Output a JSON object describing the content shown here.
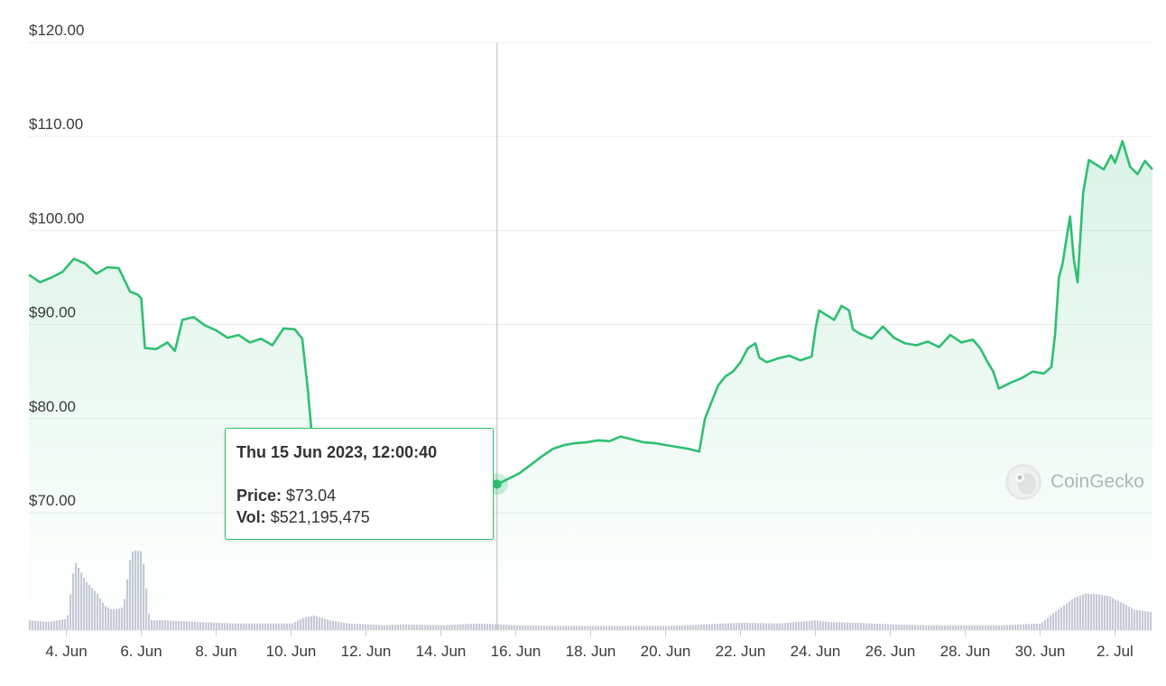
{
  "chart_data": {
    "type": "line",
    "title": "",
    "xlabel": "",
    "ylabel": "",
    "ylim": [
      70,
      120
    ],
    "y_ticks": [
      70,
      80,
      90,
      100,
      110,
      120
    ],
    "y_tick_labels": [
      "$70.00",
      "$80.00",
      "$90.00",
      "$100.00",
      "$110.00",
      "$120.00"
    ],
    "x_tick_labels": [
      "4. Jun",
      "6. Jun",
      "8. Jun",
      "10. Jun",
      "12. Jun",
      "14. Jun",
      "16. Jun",
      "18. Jun",
      "20. Jun",
      "22. Jun",
      "24. Jun",
      "26. Jun",
      "28. Jun",
      "30. Jun",
      "2. Jul"
    ],
    "x_tick_days": [
      4,
      6,
      8,
      10,
      12,
      14,
      16,
      18,
      20,
      22,
      24,
      26,
      28,
      30,
      32
    ],
    "x_range_days": [
      3,
      33
    ],
    "grid": true,
    "line_color": "#2fbf71",
    "volume_color": "#c7cbd6",
    "series": [
      {
        "x": [
          3.0,
          3.3,
          3.6,
          3.9,
          4.2,
          4.5,
          4.8,
          5.1,
          5.4,
          5.7,
          5.9,
          6.0,
          6.1,
          6.4,
          6.7,
          6.9,
          7.1,
          7.4,
          7.7,
          8.0,
          8.3,
          8.6,
          8.9,
          9.2,
          9.5,
          9.8,
          10.1,
          10.3,
          10.45,
          10.55,
          10.8,
          11.2,
          11.6,
          12.0,
          12.4,
          12.8,
          13.2,
          13.6,
          14.0,
          14.4,
          14.8,
          15.1,
          15.25,
          15.35,
          15.5,
          15.8,
          16.1,
          16.4,
          16.7,
          17.0,
          17.3,
          17.6,
          17.9,
          18.2,
          18.5,
          18.8,
          19.1,
          19.4,
          19.7,
          20.0,
          20.3,
          20.6,
          20.9,
          21.05,
          21.2,
          21.4,
          21.6,
          21.8,
          22.0,
          22.2,
          22.4,
          22.5,
          22.7,
          23.0,
          23.3,
          23.6,
          23.9,
          24.0,
          24.1,
          24.3,
          24.5,
          24.7,
          24.9,
          25.0,
          25.2,
          25.5,
          25.8,
          26.1,
          26.4,
          26.7,
          27.0,
          27.3,
          27.6,
          27.9,
          28.2,
          28.4,
          28.6,
          28.75,
          28.9,
          29.2,
          29.5,
          29.8,
          30.1,
          30.3,
          30.4,
          30.5,
          30.6,
          30.7,
          30.8,
          30.9,
          31.0,
          31.1,
          31.15,
          31.3,
          31.5,
          31.7,
          31.9,
          32.0,
          32.2,
          32.4,
          32.6,
          32.8,
          33.0
        ],
        "y": [
          95.3,
          94.5,
          95.0,
          95.6,
          97.0,
          96.5,
          95.4,
          96.1,
          96.0,
          93.5,
          93.2,
          92.8,
          87.5,
          87.4,
          88.1,
          87.2,
          90.5,
          90.8,
          89.9,
          89.4,
          88.6,
          88.9,
          88.1,
          88.5,
          87.8,
          89.6,
          89.5,
          88.5,
          83.0,
          78.5,
          77.6,
          78.2,
          77.8,
          78.3,
          77.9,
          78.4,
          78.0,
          78.8,
          78.6,
          78.1,
          78.3,
          77.9,
          75.0,
          73.5,
          73.0,
          73.6,
          74.2,
          75.1,
          76.0,
          76.8,
          77.2,
          77.4,
          77.5,
          77.7,
          77.6,
          78.1,
          77.8,
          77.5,
          77.4,
          77.2,
          77.0,
          76.8,
          76.5,
          80.0,
          81.5,
          83.5,
          84.5,
          85.0,
          86.0,
          87.5,
          88.0,
          86.5,
          86.0,
          86.4,
          86.7,
          86.2,
          86.6,
          89.5,
          91.5,
          91.0,
          90.5,
          92.0,
          91.5,
          89.5,
          89.0,
          88.5,
          89.8,
          88.6,
          88.0,
          87.8,
          88.2,
          87.6,
          88.9,
          88.1,
          88.4,
          87.5,
          86.0,
          85.0,
          83.2,
          83.8,
          84.3,
          85.0,
          84.8,
          85.5,
          89.0,
          95.0,
          96.5,
          99.0,
          101.5,
          97.0,
          94.5,
          101.0,
          104.0,
          107.5,
          107.0,
          106.5,
          108.0,
          107.2,
          109.5,
          106.8,
          106.0,
          107.4,
          106.5
        ]
      }
    ],
    "volume_data": {
      "x": [
        3.0,
        3.5,
        4.0,
        4.2,
        4.5,
        4.8,
        5.0,
        5.2,
        5.5,
        5.7,
        5.8,
        6.0,
        6.2,
        6.6,
        7.0,
        7.5,
        8.0,
        8.5,
        9.0,
        9.5,
        10.0,
        10.3,
        10.6,
        11.0,
        11.5,
        12.0,
        12.5,
        13.0,
        14.0,
        15.0,
        16.0,
        17.0,
        18.0,
        19.0,
        20.0,
        20.5,
        21.0,
        22.0,
        23.0,
        24.0,
        24.3,
        25.0,
        26.0,
        27.0,
        28.0,
        29.0,
        30.0,
        30.3,
        30.6,
        30.9,
        31.2,
        31.5,
        31.8,
        32.1,
        32.5,
        33.0
      ],
      "y": [
        0.12,
        0.1,
        0.14,
        0.85,
        0.6,
        0.45,
        0.3,
        0.25,
        0.28,
        0.95,
        0.98,
        0.97,
        0.12,
        0.12,
        0.11,
        0.1,
        0.09,
        0.08,
        0.08,
        0.08,
        0.08,
        0.15,
        0.18,
        0.12,
        0.08,
        0.07,
        0.06,
        0.07,
        0.06,
        0.08,
        0.06,
        0.05,
        0.05,
        0.05,
        0.05,
        0.06,
        0.07,
        0.09,
        0.08,
        0.12,
        0.1,
        0.09,
        0.07,
        0.06,
        0.06,
        0.06,
        0.08,
        0.2,
        0.3,
        0.4,
        0.45,
        0.44,
        0.42,
        0.35,
        0.25,
        0.22
      ]
    },
    "tooltip": {
      "title": "Thu 15 Jun 2023, 12:00:40",
      "price_label": "Price:",
      "price_value": "$73.04",
      "vol_label": "Vol:",
      "vol_value": "$521,195,475",
      "x": 15.5,
      "y": 73.04
    },
    "watermark": "CoinGecko"
  }
}
